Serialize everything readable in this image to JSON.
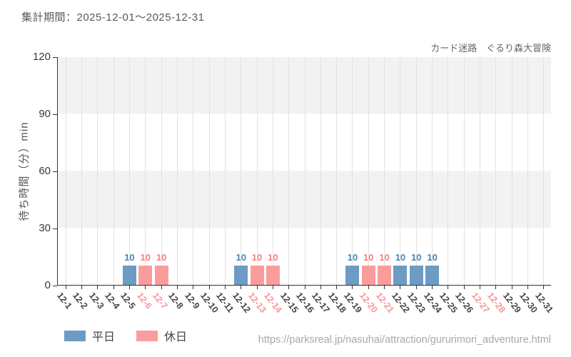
{
  "header": {
    "period_label": "集計期間：2025-12-01～2025-12-31"
  },
  "chart_data": {
    "type": "bar",
    "title": "カード迷路　ぐるり森大冒険",
    "xlabel": "",
    "ylabel": "待ち時間（分）min",
    "ylim": [
      0,
      120
    ],
    "y_ticks": [
      0,
      30,
      60,
      90,
      120
    ],
    "grid": "vertical",
    "legend_position": "bottom-left",
    "categories": [
      "12-1",
      "12-2",
      "12-3",
      "12-4",
      "12-5",
      "12-6",
      "12-7",
      "12-8",
      "12-9",
      "12-10",
      "12-11",
      "12-12",
      "12-13",
      "12-14",
      "12-15",
      "12-16",
      "12-17",
      "12-18",
      "12-19",
      "12-20",
      "12-21",
      "12-22",
      "12-23",
      "12-24",
      "12-25",
      "12-26",
      "12-27",
      "12-28",
      "12-29",
      "12-30",
      "12-31"
    ],
    "weekend_dates": [
      "12-6",
      "12-7",
      "12-13",
      "12-14",
      "12-20",
      "12-21",
      "12-27",
      "12-28"
    ],
    "series": [
      {
        "name": "平日",
        "color": "#6d9bc3",
        "label_color": "#4c86b8",
        "data": [
          {
            "x": "12-5",
            "y": 10
          },
          {
            "x": "12-12",
            "y": 10
          },
          {
            "x": "12-19",
            "y": 10
          },
          {
            "x": "12-22",
            "y": 10
          },
          {
            "x": "12-23",
            "y": 10
          },
          {
            "x": "12-24",
            "y": 10
          }
        ]
      },
      {
        "name": "休日",
        "color": "#fb9c9c",
        "label_color": "#f87f7f",
        "data": [
          {
            "x": "12-6",
            "y": 10
          },
          {
            "x": "12-7",
            "y": 10
          },
          {
            "x": "12-13",
            "y": 10
          },
          {
            "x": "12-14",
            "y": 10
          },
          {
            "x": "12-20",
            "y": 10
          },
          {
            "x": "12-21",
            "y": 10
          }
        ]
      }
    ],
    "colors": {
      "weekday_tick_label": "#444444",
      "weekend_tick_label": "#f89599",
      "band_gray": "#f2f2f2",
      "gridline": "#e2e2e2",
      "axis": "#333333"
    }
  },
  "footer": {
    "url": "https://parksreal.jp/nasuhai/attraction/gururimori_adventure.html"
  }
}
